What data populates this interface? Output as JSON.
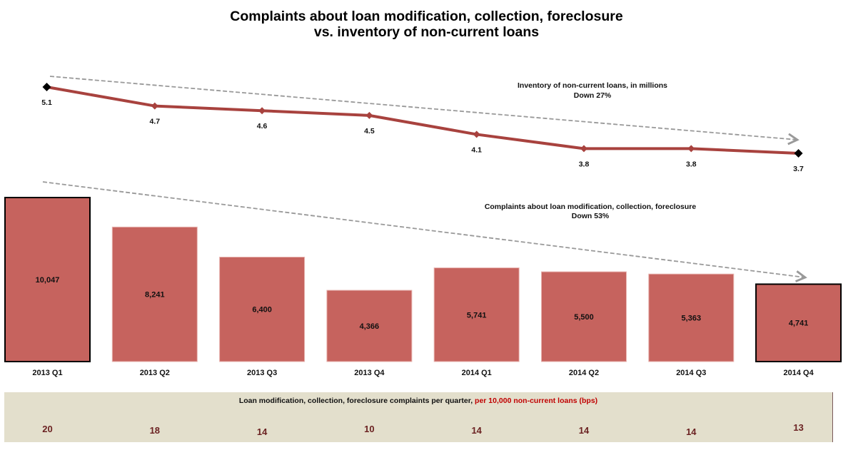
{
  "title_lines": [
    "Complaints about loan modification, collection, foreclosure",
    "vs. inventory of non-current loans"
  ],
  "colors": {
    "bar_fill": "#c6635e",
    "line": "#a8423e",
    "trend": "#999999",
    "band": "#e3dfcc",
    "bps_value": "#6b2222",
    "highlight_text": "#c00000"
  },
  "chart_data": [
    {
      "type": "line",
      "title": "Inventory of non-current loans, in millions",
      "annotation_lines": [
        "Inventory of non-current loans, in millions",
        "Down 27%"
      ],
      "categories": [
        "2013 Q1",
        "2013 Q2",
        "2013 Q3",
        "2013 Q4",
        "2014 Q1",
        "2014 Q2",
        "2014 Q3",
        "2014 Q4"
      ],
      "values": [
        5.1,
        4.7,
        4.6,
        4.5,
        4.1,
        3.8,
        3.8,
        3.7
      ],
      "data_labels": [
        "5.1",
        "4.7",
        "4.6",
        "4.5",
        "4.1",
        "3.8",
        "3.8",
        "3.7"
      ],
      "units": "millions",
      "change_label": "Down 27%",
      "endpoints_highlighted": true,
      "trend_arrow": "dashed, downward"
    },
    {
      "type": "bar",
      "title": "Complaints about loan modification, collection, foreclosure",
      "annotation_lines": [
        "Complaints about loan modification, collection, foreclosure",
        "Down 53%"
      ],
      "categories": [
        "2013 Q1",
        "2013 Q2",
        "2013 Q3",
        "2013 Q4",
        "2014 Q1",
        "2014 Q2",
        "2014 Q3",
        "2014 Q4"
      ],
      "values": [
        10047,
        8241,
        6400,
        4366,
        5741,
        5500,
        5363,
        4741
      ],
      "data_labels": [
        "10,047",
        "8,241",
        "6,400",
        "4,366",
        "5,741",
        "5,500",
        "5,363",
        "4,741"
      ],
      "change_label": "Down 53%",
      "highlighted_bars": [
        "2013 Q1",
        "2014 Q4"
      ],
      "grid": false,
      "trend_arrow": "dashed, downward"
    },
    {
      "type": "table",
      "title": "Loan modification, collection, foreclosure complaints per quarter, per 10,000 non-current loans (bps)",
      "title_parts": {
        "black": "Loan modification, collection, foreclosure complaints per quarter, ",
        "red": "per 10,000 non-current loans (bps)"
      },
      "categories": [
        "2013 Q1",
        "2013 Q2",
        "2013 Q3",
        "2013 Q4",
        "2014 Q1",
        "2014 Q2",
        "2014 Q3",
        "2014 Q4"
      ],
      "values": [
        20,
        18,
        14,
        10,
        14,
        14,
        14,
        13
      ],
      "units": "bps"
    }
  ]
}
